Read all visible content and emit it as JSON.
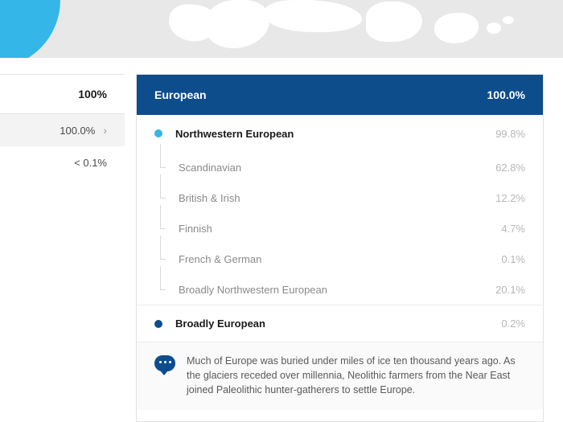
{
  "colors": {
    "header_bg": "#0d4d8c",
    "accent_light": "#34b7e8",
    "accent_dark": "#0d4d8c",
    "muted_text": "#b6b6b6",
    "sub_text": "#8a8a8a"
  },
  "left": {
    "total": "100%",
    "rows": [
      {
        "value": "100.0%",
        "has_chevron": true,
        "shaded": true
      },
      {
        "value": "< 0.1%",
        "has_chevron": false,
        "shaded": false
      }
    ]
  },
  "main": {
    "header_label": "European",
    "header_pct": "100.0%",
    "group": {
      "dot_color": "#34b7e8",
      "label": "Northwestern European",
      "pct": "99.8%"
    },
    "subs": [
      {
        "label": "Scandinavian",
        "pct": "62.8%"
      },
      {
        "label": "British & Irish",
        "pct": "12.2%"
      },
      {
        "label": "Finnish",
        "pct": "4.7%"
      },
      {
        "label": "French & German",
        "pct": "0.1%"
      },
      {
        "label": "Broadly Northwestern European",
        "pct": "20.1%"
      }
    ],
    "broadly": {
      "dot_color": "#0d4d8c",
      "label": "Broadly European",
      "pct": "0.2%"
    },
    "info_text": "Much of Europe was buried under miles of ice ten thousand years ago. As the glaciers receded over millennia, Neolithic farmers from the Near East joined Paleolithic hunter-gatherers to settle Europe."
  }
}
